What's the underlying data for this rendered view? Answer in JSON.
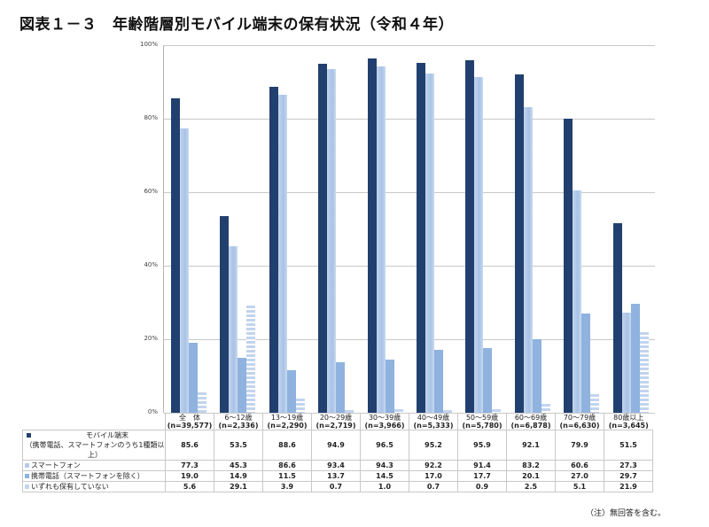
{
  "title": "図表１－３　年齢階層別モバイル端末の保有状況（令和４年）",
  "note": "（注）無回答を含む。",
  "colors": {
    "mobile": "#21406f",
    "smartphone": "#b5cbe9",
    "feature_phone": "#8fb2df",
    "none": "#c2d4ee"
  },
  "chart_data": {
    "type": "bar",
    "title": "図表１－３　年齢階層別モバイル端末の保有状況（令和４年）",
    "xlabel": "",
    "ylabel": "",
    "ylim": [
      0,
      100
    ],
    "yticks": [
      "0%",
      "20%",
      "40%",
      "60%",
      "80%",
      "100%"
    ],
    "grid": true,
    "legend_position": "table-left",
    "categories": [
      "全　体",
      "6～12歳",
      "13～19歳",
      "20～29歳",
      "30～39歳",
      "40～49歳",
      "50～59歳",
      "60～69歳",
      "70～79歳",
      "80歳以上"
    ],
    "sample_sizes": [
      "(n=39,577)",
      "(n=2,336)",
      "(n=2,290)",
      "(n=2,719)",
      "(n=3,966)",
      "(n=5,333)",
      "(n=5,780)",
      "(n=6,878)",
      "(n=6,630)",
      "(n=3,645)"
    ],
    "series": [
      {
        "name": "モバイル端末（携帯電話、スマートフォンのうち1種類以上）",
        "label_line1": "モバイル端末",
        "label_line2": "（携帯電話、スマートフォンのうち1種類以上）",
        "values": [
          85.6,
          53.5,
          88.6,
          94.9,
          96.5,
          95.2,
          95.9,
          92.1,
          79.9,
          51.5
        ]
      },
      {
        "name": "スマートフォン",
        "values": [
          77.3,
          45.3,
          86.6,
          93.4,
          94.3,
          92.2,
          91.4,
          83.2,
          60.6,
          27.3
        ]
      },
      {
        "name": "携帯電話（スマートフォンを除く）",
        "values": [
          19.0,
          14.9,
          11.5,
          13.7,
          14.5,
          17.0,
          17.7,
          20.1,
          27.0,
          29.7
        ]
      },
      {
        "name": "いずれも保有していない",
        "values": [
          5.6,
          29.1,
          3.9,
          0.7,
          1.0,
          0.7,
          0.9,
          2.5,
          5.1,
          21.9
        ]
      }
    ]
  }
}
